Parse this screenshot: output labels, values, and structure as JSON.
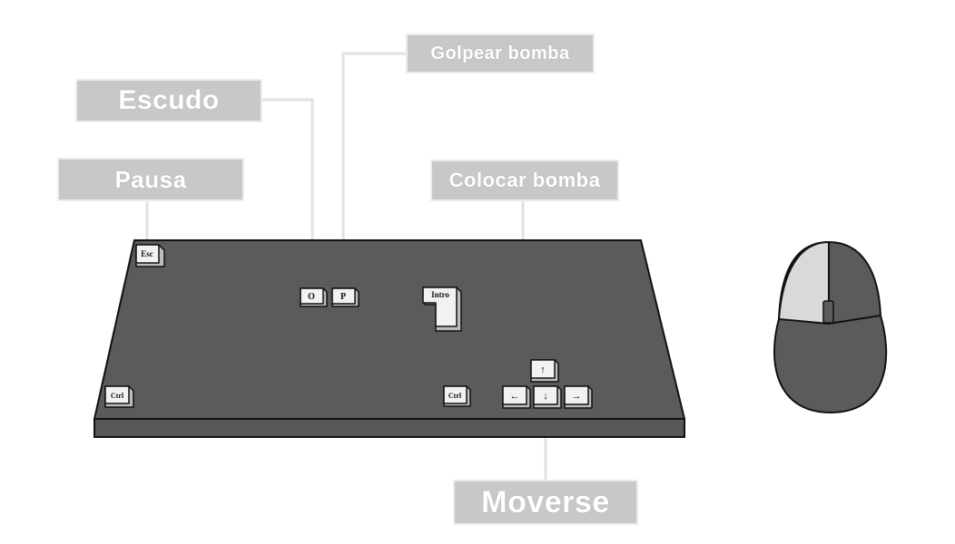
{
  "labels": {
    "golpear_bomba": "Golpear bomba",
    "escudo": "Escudo",
    "pausa": "Pausa",
    "colocar_bomba": "Colocar bomba",
    "moverse": "Moverse"
  },
  "keys": {
    "esc": "Esc",
    "o": "O",
    "p": "P",
    "intro": "Intro",
    "ctrl_left": "Ctrl",
    "ctrl_right": "Ctrl",
    "up": "↑",
    "down": "↓",
    "left": "←",
    "right": "→"
  },
  "colors": {
    "keyboard_body": "#5b5b5b",
    "label_bg": "#c8c8c8",
    "label_text": "#ffffff",
    "connector": "#e2e2e2",
    "key_face": "#f2f2f2",
    "mouse_left_button": "#d9d9d9"
  }
}
